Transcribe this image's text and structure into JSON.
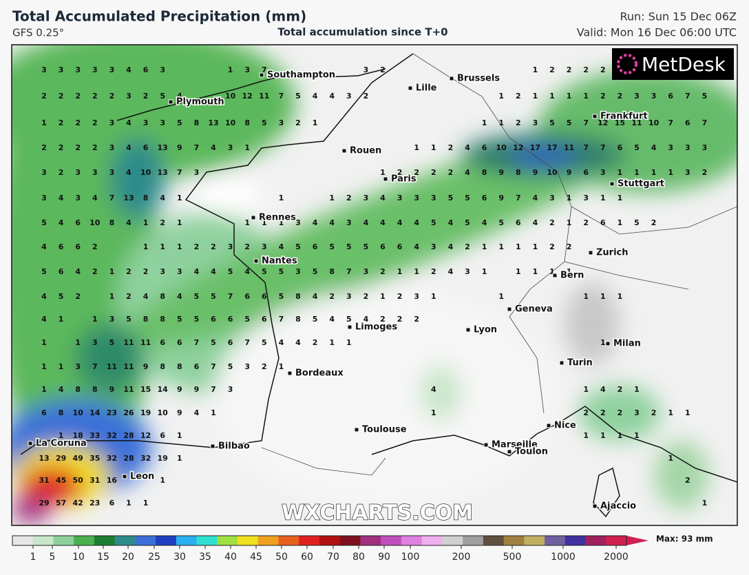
{
  "header": {
    "title": "Total Accumulated Precipitation (mm)",
    "model": "GFS 0.25°",
    "subtitle": "Total accumulation since T+0",
    "run": "Run: Sun 15 Dec 06Z",
    "valid": "Valid: Mon 16 Dec 06:00 UTC"
  },
  "logo": "MetDesk",
  "watermark": "WXCHARTS.COM",
  "cities": [
    "Southampton",
    "Plymouth",
    "Lille",
    "Brussels",
    "Frankfurt",
    "Rouen",
    "Paris",
    "Stuttgart",
    "Rennes",
    "Nantes",
    "Zurich",
    "Bern",
    "Geneva",
    "Lyon",
    "Limoges",
    "Milan",
    "Turin",
    "Bordeaux",
    "Toulouse",
    "Nice",
    "La Coruna",
    "Bilbao",
    "Marseille",
    "Toulon",
    "Leon",
    "Ajaccio"
  ],
  "grid": {
    "rows": [
      [
        3,
        3,
        3,
        3,
        3,
        4,
        6,
        3,
        null,
        null,
        null,
        1,
        3,
        7,
        null,
        null,
        null,
        null,
        null,
        3,
        2,
        null,
        null,
        null,
        null,
        null,
        null,
        null,
        null,
        1,
        2,
        2,
        2,
        2
      ],
      [
        2,
        2,
        2,
        2,
        2,
        3,
        2,
        5,
        4,
        null,
        null,
        10,
        12,
        11,
        7,
        5,
        4,
        4,
        3,
        2,
        null,
        null,
        null,
        null,
        null,
        null,
        null,
        1,
        2,
        1,
        1,
        1,
        1,
        2,
        2,
        3,
        3,
        6,
        7,
        5
      ],
      [
        1,
        2,
        2,
        2,
        3,
        4,
        3,
        3,
        5,
        8,
        13,
        10,
        8,
        5,
        3,
        2,
        1,
        null,
        null,
        null,
        null,
        null,
        null,
        null,
        null,
        null,
        1,
        1,
        2,
        3,
        5,
        5,
        7,
        12,
        15,
        11,
        10,
        7,
        6,
        7
      ],
      [
        2,
        2,
        2,
        2,
        3,
        4,
        6,
        13,
        9,
        7,
        4,
        3,
        1,
        null,
        null,
        null,
        null,
        null,
        null,
        null,
        null,
        null,
        1,
        1,
        2,
        4,
        6,
        10,
        12,
        17,
        17,
        11,
        7,
        7,
        6,
        5,
        4,
        3,
        3,
        3
      ],
      [
        3,
        2,
        3,
        3,
        3,
        4,
        10,
        13,
        7,
        3,
        null,
        null,
        null,
        null,
        null,
        null,
        null,
        null,
        null,
        null,
        1,
        2,
        2,
        2,
        2,
        4,
        8,
        9,
        8,
        9,
        10,
        9,
        6,
        3,
        1,
        1,
        1,
        1,
        3,
        2
      ],
      [
        3,
        4,
        3,
        4,
        7,
        13,
        8,
        4,
        1,
        null,
        null,
        null,
        null,
        null,
        1,
        null,
        null,
        1,
        2,
        3,
        4,
        3,
        3,
        3,
        5,
        5,
        6,
        9,
        7,
        4,
        3,
        1,
        3,
        1,
        1
      ],
      [
        5,
        4,
        6,
        10,
        8,
        4,
        1,
        2,
        1,
        null,
        null,
        null,
        1,
        1,
        1,
        3,
        4,
        4,
        3,
        4,
        4,
        4,
        4,
        5,
        4,
        5,
        4,
        5,
        6,
        4,
        2,
        1,
        2,
        6,
        1,
        5,
        2
      ],
      [
        4,
        6,
        6,
        2,
        null,
        null,
        1,
        1,
        1,
        2,
        2,
        3,
        2,
        3,
        4,
        5,
        6,
        5,
        5,
        5,
        6,
        6,
        4,
        3,
        4,
        2,
        1,
        1,
        1,
        1,
        2,
        2
      ],
      [
        5,
        6,
        4,
        2,
        1,
        2,
        2,
        3,
        3,
        4,
        4,
        5,
        4,
        5,
        5,
        3,
        5,
        8,
        7,
        3,
        2,
        1,
        1,
        2,
        4,
        3,
        1,
        null,
        1,
        1,
        1,
        1
      ],
      [
        4,
        5,
        2,
        null,
        1,
        2,
        4,
        8,
        4,
        5,
        5,
        7,
        6,
        6,
        5,
        8,
        4,
        2,
        3,
        2,
        1,
        2,
        3,
        1,
        null,
        null,
        null,
        1,
        null,
        null,
        null,
        null,
        1,
        1,
        1
      ],
      [
        4,
        1,
        null,
        1,
        3,
        5,
        8,
        8,
        5,
        5,
        6,
        6,
        5,
        6,
        7,
        8,
        5,
        4,
        5,
        4,
        2,
        2,
        2
      ],
      [
        1,
        null,
        1,
        3,
        5,
        11,
        11,
        6,
        6,
        7,
        5,
        6,
        7,
        5,
        4,
        4,
        2,
        1,
        1,
        null,
        null,
        null,
        null,
        null,
        null,
        null,
        null,
        null,
        null,
        null,
        null,
        null,
        null,
        1
      ],
      [
        1,
        1,
        3,
        7,
        11,
        11,
        9,
        8,
        8,
        6,
        7,
        5,
        3,
        2,
        1
      ],
      [
        1,
        4,
        8,
        8,
        9,
        11,
        15,
        14,
        9,
        9,
        7,
        3,
        null,
        null,
        null,
        null,
        null,
        null,
        null,
        null,
        null,
        null,
        null,
        4,
        null,
        null,
        null,
        null,
        null,
        null,
        null,
        null,
        1,
        4,
        2,
        1
      ],
      [
        6,
        8,
        10,
        14,
        23,
        26,
        19,
        10,
        9,
        4,
        1,
        null,
        null,
        null,
        null,
        null,
        null,
        null,
        null,
        null,
        null,
        null,
        null,
        1,
        null,
        null,
        null,
        null,
        null,
        null,
        null,
        null,
        2,
        2,
        2,
        3,
        2,
        1,
        1
      ],
      [
        null,
        1,
        18,
        33,
        32,
        28,
        12,
        6,
        1,
        null,
        null,
        null,
        null,
        null,
        null,
        null,
        null,
        null,
        null,
        null,
        null,
        null,
        null,
        null,
        null,
        null,
        null,
        null,
        null,
        null,
        null,
        null,
        1,
        1,
        1,
        1
      ],
      [
        13,
        29,
        49,
        35,
        32,
        28,
        32,
        19,
        1,
        null,
        null,
        null,
        null,
        null,
        null,
        null,
        null,
        null,
        null,
        null,
        null,
        null,
        null,
        null,
        null,
        null,
        null,
        null,
        null,
        null,
        null,
        null,
        null,
        null,
        null,
        null,
        null,
        1
      ],
      [
        31,
        45,
        50,
        31,
        16,
        null,
        null,
        1,
        null,
        null,
        null,
        null,
        null,
        null,
        null,
        null,
        null,
        null,
        null,
        null,
        null,
        null,
        null,
        null,
        null,
        null,
        null,
        null,
        null,
        null,
        null,
        null,
        null,
        null,
        null,
        null,
        null,
        null,
        2
      ],
      [
        29,
        57,
        42,
        23,
        6,
        1,
        1,
        null,
        null,
        null,
        null,
        null,
        null,
        null,
        null,
        null,
        null,
        null,
        null,
        null,
        null,
        null,
        null,
        null,
        null,
        null,
        null,
        null,
        null,
        null,
        null,
        null,
        null,
        null,
        null,
        null,
        null,
        null,
        null,
        1
      ]
    ]
  },
  "colorbar": {
    "labels": [
      1,
      5,
      10,
      15,
      20,
      25,
      30,
      35,
      40,
      45,
      50,
      60,
      70,
      80,
      90,
      100,
      200,
      500,
      1000,
      2000
    ],
    "max": "Max: 93 mm",
    "colors": [
      "#e6e6e6",
      "#c8e6c9",
      "#8fd19e",
      "#4caf50",
      "#1e7d32",
      "#2e8b8b",
      "#3a6fd8",
      "#1e40c0",
      "#2ab0f0",
      "#30e0d0",
      "#a0e040",
      "#f0e020",
      "#f0a020",
      "#e86020",
      "#e02020",
      "#b01010",
      "#801020",
      "#a03080",
      "#c050c0",
      "#e080e0",
      "#f0b0f0",
      "#d0d0d0",
      "#a0a0a0",
      "#605040",
      "#a08040",
      "#c0b060",
      "#7060a0",
      "#4030a0",
      "#a02060",
      "#d02050"
    ]
  }
}
